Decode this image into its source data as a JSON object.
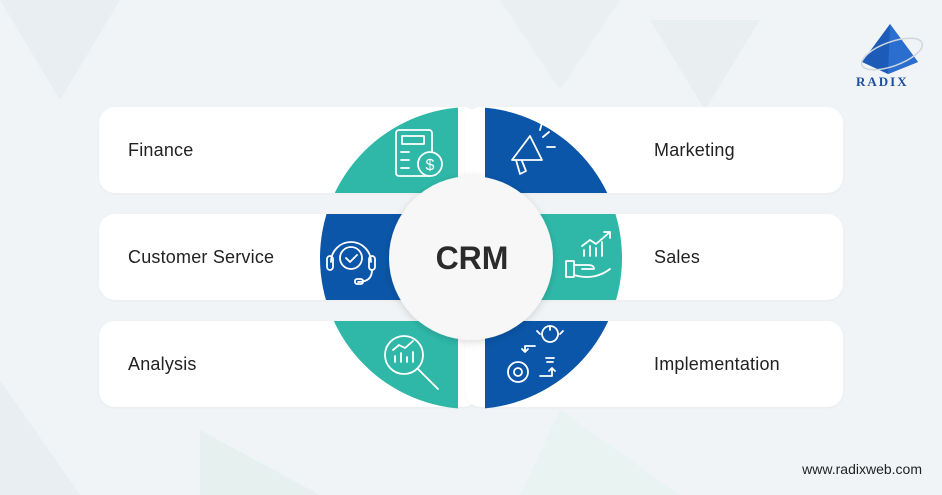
{
  "center_label": "CRM",
  "items": [
    {
      "label": "Finance",
      "icon": "calculator-dollar-icon",
      "side": "left",
      "color": "#2fb8a8"
    },
    {
      "label": "Customer Service",
      "icon": "headset-check-icon",
      "side": "left",
      "color": "#0b56a8"
    },
    {
      "label": "Analysis",
      "icon": "magnifier-chart-icon",
      "side": "left",
      "color": "#2fb8a8"
    },
    {
      "label": "Marketing",
      "icon": "megaphone-icon",
      "side": "right",
      "color": "#0b56a8"
    },
    {
      "label": "Sales",
      "icon": "hand-growth-chart-icon",
      "side": "right",
      "color": "#2fb8a8"
    },
    {
      "label": "Implementation",
      "icon": "gear-lightbulb-icon",
      "side": "right",
      "color": "#0b56a8"
    }
  ],
  "brand": {
    "name": "RADIX",
    "url": "www.radixweb.com",
    "color": "#1d4e9e"
  },
  "colors": {
    "teal": "#2fb8a8",
    "blue": "#0b56a8"
  }
}
